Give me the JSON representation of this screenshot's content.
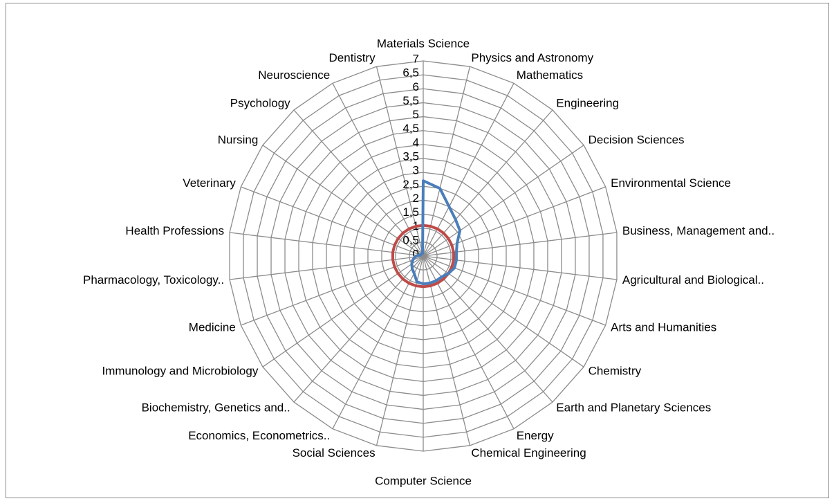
{
  "chart_data": {
    "type": "radar",
    "categories": [
      "Materials Science",
      "Physics and Astronomy",
      "Mathematics",
      "Engineering",
      "Decision Sciences",
      "Environmental Science",
      "Business, Management and..",
      "Agricultural and Biological..",
      "Arts and Humanities",
      "Chemistry",
      "Earth and Planetary Sciences",
      "Energy",
      "Chemical Engineering",
      "Computer Science",
      "Social Sciences",
      "Economics, Econometrics..",
      "Biochemistry, Genetics and..",
      "Immunology and Microbiology",
      "Medicine",
      "Pharmacology, Toxicology..",
      "Health Professions",
      "Veterinary",
      "Nursing",
      "Psychology",
      "Neuroscience",
      "Dentistry"
    ],
    "series": [
      {
        "color": "#4a7ebb",
        "values": [
          2.7,
          2.5,
          2.0,
          1.75,
          1.6,
          1.3,
          1.2,
          1.2,
          1.2,
          1.1,
          1.0,
          1.0,
          1.0,
          1.0,
          0.95,
          0.7,
          0.6,
          0.5,
          0.4,
          0.3,
          0.2,
          0.1,
          0.1,
          0.1,
          0.1,
          0.1
        ]
      },
      {
        "color": "#be4b48",
        "values": [
          1.1,
          1.1,
          1.1,
          1.1,
          1.1,
          1.1,
          1.1,
          1.1,
          1.1,
          1.1,
          1.1,
          1.1,
          1.1,
          1.1,
          1.1,
          1.1,
          1.1,
          1.1,
          1.1,
          1.1,
          1.1,
          1.1,
          1.1,
          1.1,
          1.1,
          1.1
        ]
      }
    ],
    "ylim": [
      0,
      7
    ],
    "yticks": [
      0,
      {
        "value": 0.5,
        "label": "0,5"
      },
      1,
      {
        "value": 1.5,
        "label": "1,5"
      },
      2,
      {
        "value": 2.5,
        "label": "2,5"
      },
      3,
      {
        "value": 3.5,
        "label": "3,5"
      },
      4,
      {
        "value": 4.5,
        "label": "4,5"
      },
      5,
      {
        "value": 5.5,
        "label": "5,5"
      },
      6,
      {
        "value": 6.5,
        "label": "6,5"
      },
      7
    ],
    "grid": true
  }
}
